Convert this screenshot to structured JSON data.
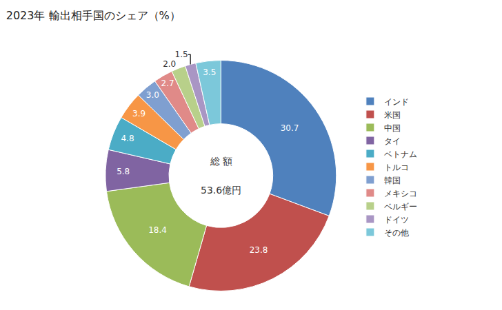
{
  "chart_data": {
    "type": "pie",
    "title": "2023年 輸出相手国のシェア（%）",
    "categories": [
      "インド",
      "米国",
      "中国",
      "タイ",
      "ベトナム",
      "トルコ",
      "韓国",
      "メキシコ",
      "ベルギー",
      "ドイツ",
      "その他"
    ],
    "values": [
      30.7,
      23.8,
      18.4,
      5.8,
      4.8,
      3.9,
      3.0,
      2.7,
      2.0,
      1.5,
      3.5
    ],
    "value_labels": [
      "30.7",
      "23.8",
      "18.4",
      "5.8",
      "4.8",
      "3.9",
      "3.0",
      "2.7",
      "2.0",
      "1.5",
      "3.5"
    ],
    "colors": [
      "#4F81BD",
      "#C0504D",
      "#9BBB59",
      "#8064A2",
      "#4BACC6",
      "#F79646",
      "#7F9FD0",
      "#E08A88",
      "#B8D08A",
      "#A996C4",
      "#7CC8DA"
    ],
    "data_labels": true,
    "legend": "right",
    "annotations": [
      "総 額",
      "53.6億円"
    ]
  }
}
